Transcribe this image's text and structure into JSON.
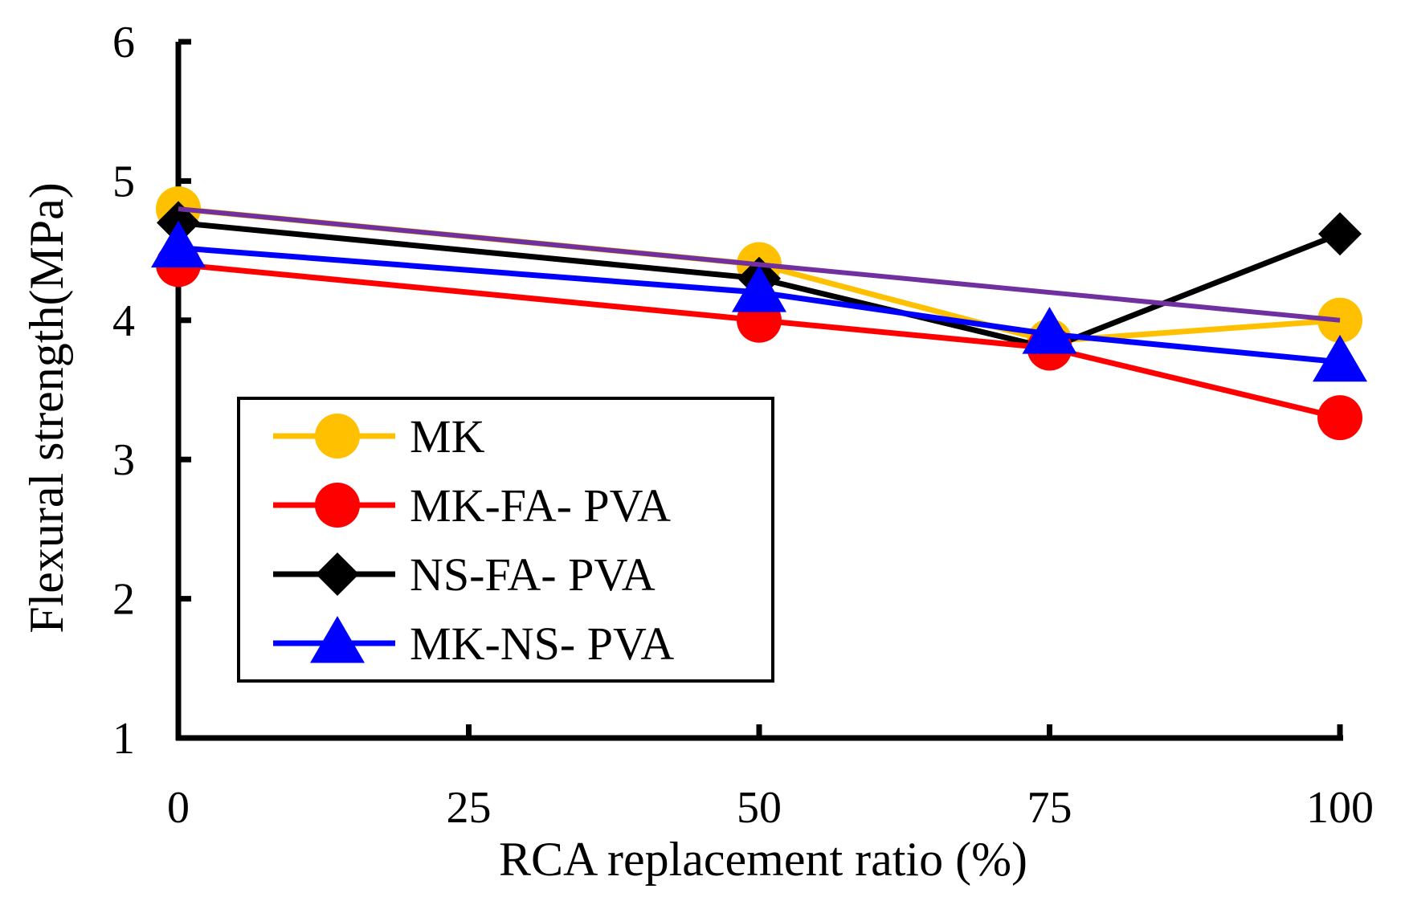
{
  "chart_data": {
    "type": "line",
    "title": "",
    "xlabel": "RCA replacement ratio (%)",
    "ylabel": "Flexural strength(MPa)",
    "xlim": [
      0,
      100
    ],
    "ylim": [
      1,
      6
    ],
    "xticks": [
      0,
      25,
      50,
      75,
      100
    ],
    "yticks": [
      1,
      2,
      3,
      4,
      5,
      6
    ],
    "grid": false,
    "legend_position": "bottom-left",
    "series": [
      {
        "name": "MK",
        "color": "#FFC000",
        "marker": "circle",
        "x": [
          0,
          50,
          75,
          100
        ],
        "values": [
          4.8,
          4.4,
          3.85,
          4.0
        ]
      },
      {
        "name": "MK-FA- PVA",
        "color": "#FF0000",
        "marker": "circle",
        "x": [
          0,
          50,
          75,
          100
        ],
        "values": [
          4.4,
          4.0,
          3.8,
          3.3
        ]
      },
      {
        "name": "NS-FA- PVA",
        "color": "#000000",
        "marker": "diamond",
        "x": [
          0,
          50,
          75,
          100
        ],
        "values": [
          4.7,
          4.3,
          3.8,
          4.62
        ]
      },
      {
        "name": "MK-NS- PVA",
        "color": "#0000FF",
        "marker": "triangle",
        "x": [
          0,
          50,
          75,
          100
        ],
        "values": [
          4.52,
          4.2,
          3.9,
          3.7
        ]
      }
    ],
    "trend_line": {
      "color": "#7030A0",
      "x": [
        0,
        100
      ],
      "values": [
        4.8,
        4.0
      ]
    }
  }
}
